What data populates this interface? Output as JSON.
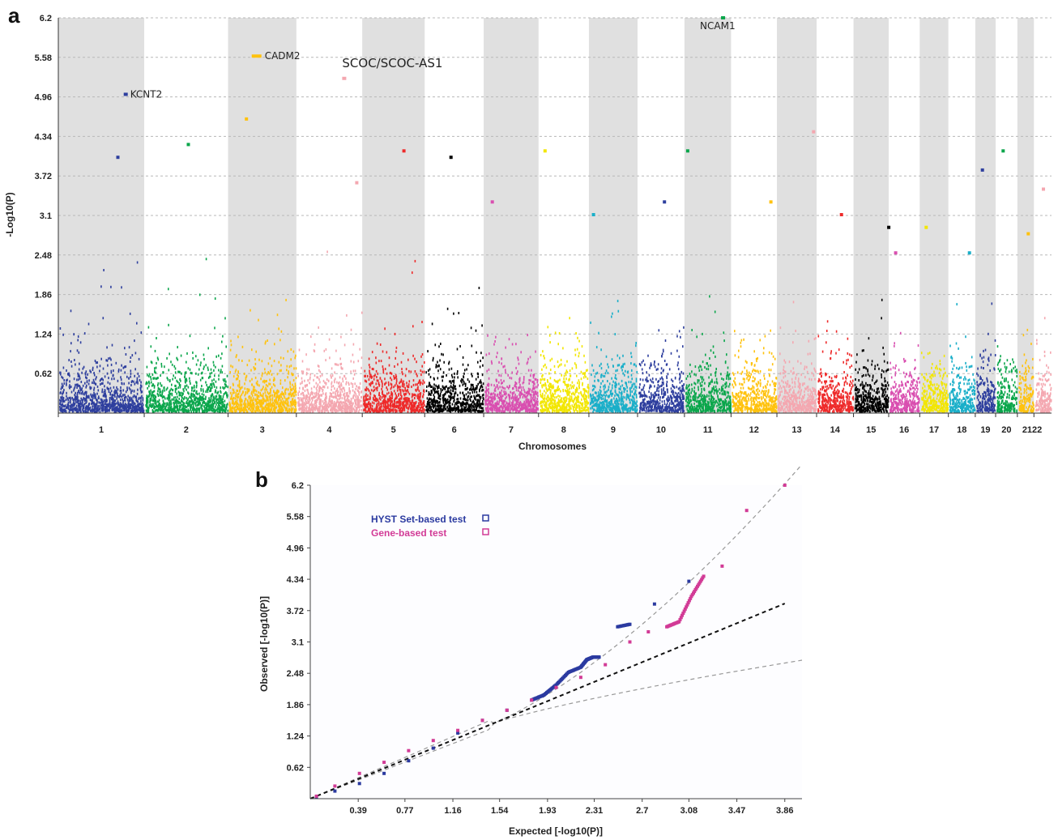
{
  "figure": {
    "label_a": "a",
    "label_b": "b"
  },
  "chart_data": [
    {
      "type": "scatter",
      "subtype": "manhattan",
      "title": "",
      "xlabel": "Chromosomes",
      "ylabel": "-Log10(P)",
      "ylim": [
        0,
        6.2
      ],
      "yticks": [
        "0.62",
        "1.24",
        "1.86",
        "2.48",
        "3.1",
        "3.72",
        "4.34",
        "4.96",
        "5.58",
        "6.2"
      ],
      "grid": true,
      "chromosomes": [
        "1",
        "2",
        "3",
        "4",
        "5",
        "6",
        "7",
        "8",
        "9",
        "10",
        "11",
        "12",
        "13",
        "14",
        "15",
        "16",
        "17",
        "18",
        "19",
        "20",
        "21",
        "22"
      ],
      "chromosome_labels": [
        "1",
        "2",
        "3",
        "4",
        "5",
        "6",
        "7",
        "8",
        "9",
        "10",
        "11",
        "12",
        "13",
        "14",
        "15",
        "16",
        "17",
        "18",
        "19",
        "20",
        "2122",
        ""
      ],
      "chromosome_colors": [
        "#2e3f9e",
        "#0aa64b",
        "#ffc20e",
        "#f4a7b0",
        "#ee2a2a",
        "#000000",
        "#d94fb0",
        "#f2e600",
        "#1aafc9",
        "#2e3f9e",
        "#0aa64b",
        "#ffc20e",
        "#f4a7b0",
        "#ee2a2a",
        "#000000",
        "#d94fb0",
        "#f2e600",
        "#1aafc9",
        "#2e3f9e",
        "#0aa64b",
        "#ffc20e",
        "#f4a7b0"
      ],
      "chromosome_max": [
        4.0,
        4.2,
        4.6,
        3.6,
        4.1,
        4.0,
        3.3,
        4.1,
        3.1,
        3.3,
        4.1,
        3.3,
        4.4,
        3.1,
        2.9,
        2.5,
        2.9,
        2.5,
        3.8,
        4.1,
        2.8,
        3.5
      ],
      "annotations": [
        {
          "text": "KCNT2",
          "chromosome": "1",
          "y": 5.0
        },
        {
          "text": "CADM2",
          "chromosome": "3",
          "y": 5.6
        },
        {
          "text": "SCOC/SCOC-AS1",
          "chromosome": "4",
          "y": 5.25
        },
        {
          "text": "NCAM1",
          "chromosome": "11",
          "y": 6.2
        }
      ]
    },
    {
      "type": "scatter",
      "subtype": "qq",
      "title": "",
      "xlabel": "Expected [-log10(P)]",
      "ylabel": "Observed [-log10(P)]",
      "xlim": [
        0,
        3.86
      ],
      "ylim": [
        0,
        6.2
      ],
      "xticks": [
        "0.39",
        "0.77",
        "1.16",
        "1.54",
        "1.93",
        "2.31",
        "2.7",
        "3.08",
        "3.47",
        "3.86"
      ],
      "yticks": [
        "0.62",
        "1.24",
        "1.86",
        "2.48",
        "3.1",
        "3.72",
        "4.34",
        "4.96",
        "5.58",
        "6.2"
      ],
      "grid": false,
      "legend_position": "top-left",
      "series": [
        {
          "name": "HYST Set-based test",
          "color": "#2b3aa0",
          "x": [
            0.05,
            0.2,
            0.4,
            0.6,
            0.8,
            1.0,
            1.2,
            1.4,
            1.6,
            1.8,
            1.9,
            2.0,
            2.1,
            2.2,
            2.25,
            2.3,
            2.35,
            2.5,
            2.6,
            2.8,
            3.08
          ],
          "y": [
            0.03,
            0.15,
            0.3,
            0.5,
            0.75,
            1.0,
            1.3,
            1.55,
            1.75,
            1.95,
            2.05,
            2.25,
            2.5,
            2.6,
            2.75,
            2.8,
            2.8,
            3.4,
            3.45,
            3.85,
            4.3
          ]
        },
        {
          "name": "Gene-based test",
          "color": "#d23b96",
          "x": [
            0.05,
            0.2,
            0.4,
            0.6,
            0.8,
            1.0,
            1.2,
            1.4,
            1.6,
            1.8,
            2.0,
            2.2,
            2.4,
            2.6,
            2.75,
            2.9,
            3.0,
            3.1,
            3.2,
            3.35,
            3.55,
            3.86
          ],
          "y": [
            0.05,
            0.25,
            0.5,
            0.72,
            0.95,
            1.15,
            1.35,
            1.55,
            1.75,
            1.95,
            2.2,
            2.4,
            2.65,
            3.1,
            3.3,
            3.4,
            3.5,
            4.0,
            4.4,
            4.6,
            5.7,
            6.2
          ]
        }
      ],
      "reference_line": {
        "slope": 1,
        "style": "dashed",
        "color": "#111111"
      },
      "confidence_band": {
        "style": "dashed",
        "color": "#999999"
      }
    }
  ]
}
